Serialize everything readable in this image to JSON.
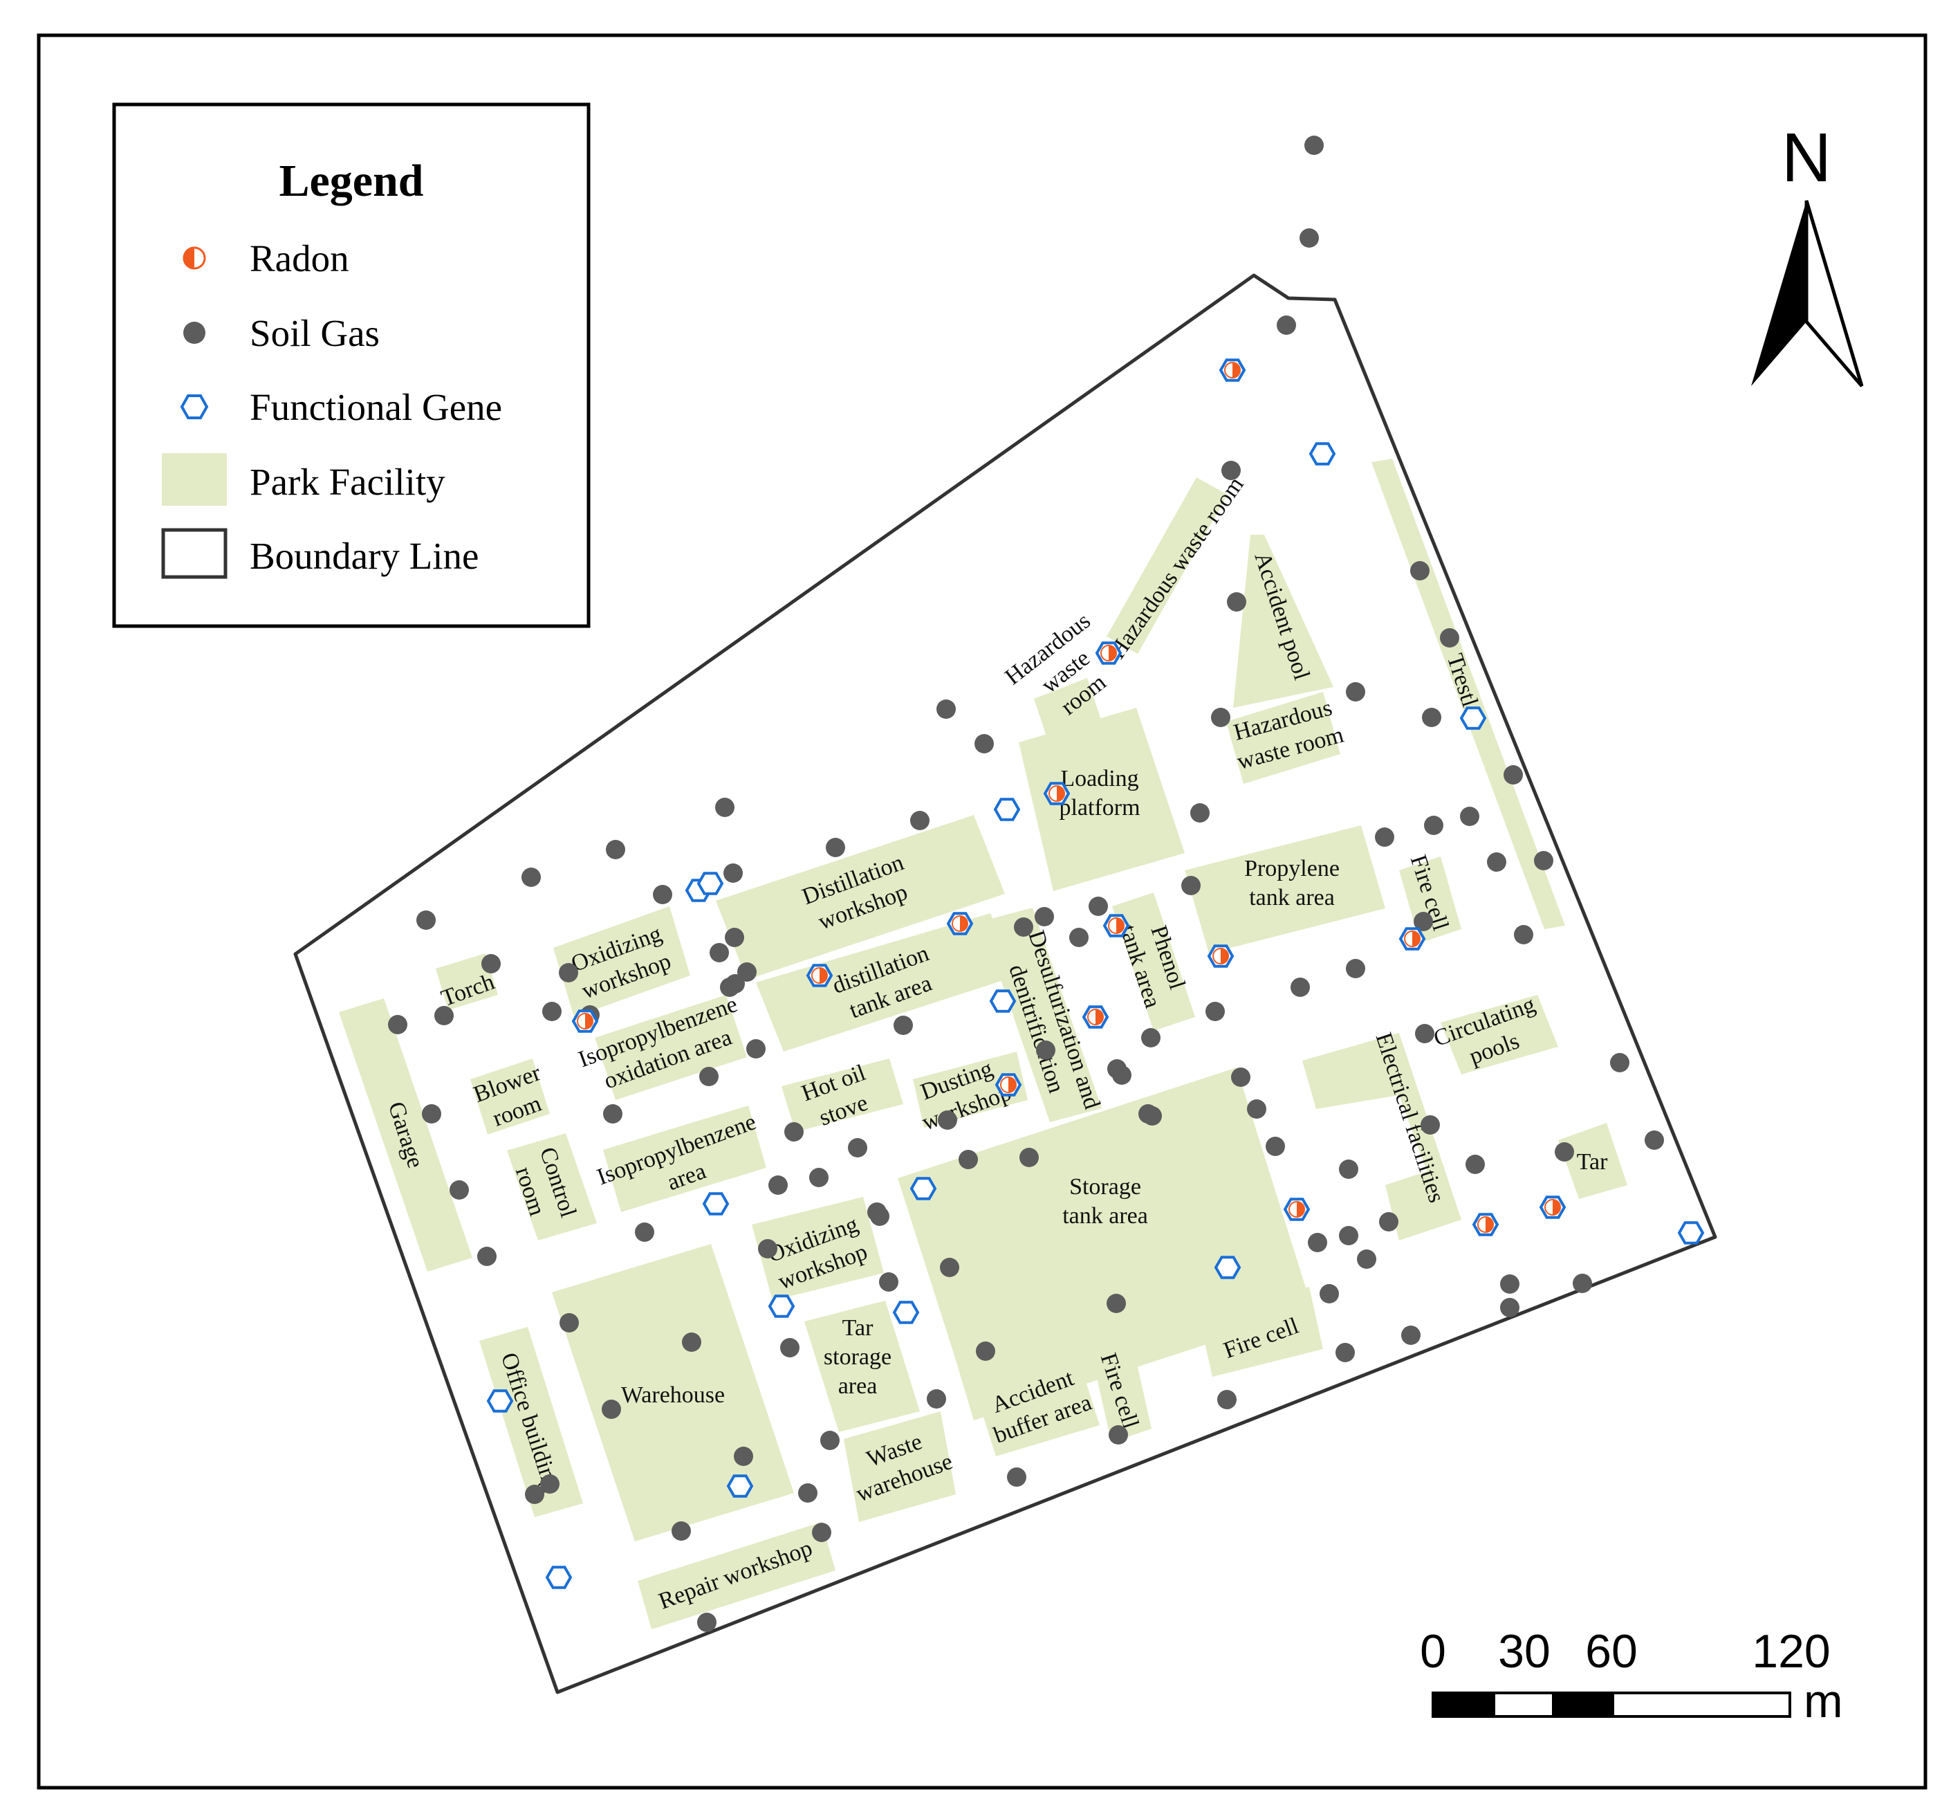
{
  "legend": {
    "title": "Legend",
    "items": [
      {
        "label": "Radon",
        "symbol": "half-circle-orange-icon"
      },
      {
        "label": "Soil Gas",
        "symbol": "grey-dot-icon"
      },
      {
        "label": "Functional Gene",
        "symbol": "blue-hexagon-icon"
      },
      {
        "label": "Park Facility",
        "symbol": "green-patch-icon"
      },
      {
        "label": "Boundary Line",
        "symbol": "outlined-rectangle-icon"
      }
    ]
  },
  "north_arrow": {
    "label": "N"
  },
  "scale_bar": {
    "ticks": [
      "0",
      "30",
      "60",
      "120"
    ],
    "unit": "m"
  },
  "colors": {
    "facility": "#e3ebc6",
    "soil_gas": "#5c5c5c",
    "radon": "#f05a1e",
    "gene": "#1a6fd6",
    "boundary": "#333333"
  },
  "facilities": [
    {
      "id": "garage",
      "label": "Garage"
    },
    {
      "id": "torch",
      "label": "Torch"
    },
    {
      "id": "oxidizing-workshop-n",
      "label": "Oxidizing workshop"
    },
    {
      "id": "distillation-workshop",
      "label": "Distillation workshop"
    },
    {
      "id": "distillation-tank-area",
      "label": "distillation tank area"
    },
    {
      "id": "isopropylbenzene-oxidation-area",
      "label": "Isopropylbenzene oxidation area"
    },
    {
      "id": "blower-room",
      "label": "Blower room"
    },
    {
      "id": "hot-oil-stove",
      "label": "Hot oil stove"
    },
    {
      "id": "dusting-workshop",
      "label": "Dusting workshop"
    },
    {
      "id": "control-room",
      "label": "Control room"
    },
    {
      "id": "isopropylbenzene-area",
      "label": "Isopropylbenzene area"
    },
    {
      "id": "oxidizing-workshop-s",
      "label": "Oxidizing workshop"
    },
    {
      "id": "warehouse",
      "label": "Warehouse"
    },
    {
      "id": "office-building",
      "label": "Office building"
    },
    {
      "id": "tar-storage-area",
      "label": "Tar storage area"
    },
    {
      "id": "waste-warehouse",
      "label": "Waste warehouse"
    },
    {
      "id": "repair-workshop",
      "label": "Repair workshop"
    },
    {
      "id": "accident-buffer-area",
      "label": "Accident buffer area"
    },
    {
      "id": "fire-cell-s",
      "label": "Fire cell"
    },
    {
      "id": "storage-tank-area",
      "label": "Storage tank area"
    },
    {
      "id": "fire-cell-se",
      "label": "Fire cell"
    },
    {
      "id": "desulfurization",
      "label": "Desulfurization and denitrification"
    },
    {
      "id": "phenol-tank-area",
      "label": "Phenol tank area"
    },
    {
      "id": "loading-platform",
      "label": "Loading platform"
    },
    {
      "id": "hazardous-waste-room-w",
      "label": "Hazardous waste room"
    },
    {
      "id": "hazardous-waste-room-n",
      "label": "Hazardous waste room"
    },
    {
      "id": "accident-pool",
      "label": "Accident pool"
    },
    {
      "id": "hazardous-waste-room-e",
      "label": "Hazardous waste room"
    },
    {
      "id": "propylene-tank-area",
      "label": "Propylene tank area"
    },
    {
      "id": "fire-cell-e",
      "label": "Fire cell"
    },
    {
      "id": "trestle",
      "label": "Trestle"
    },
    {
      "id": "electrical-facilities",
      "label": "Electrical facilities"
    },
    {
      "id": "circulating-pools",
      "label": "Circulating pools"
    },
    {
      "id": "tar",
      "label": "Tar"
    }
  ]
}
